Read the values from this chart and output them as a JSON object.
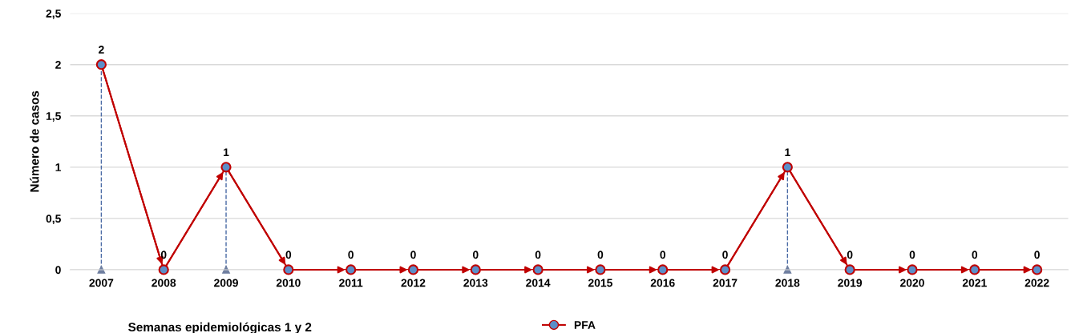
{
  "chart_data": {
    "type": "line",
    "xlabel": "Semanas epidemiológicas 1 y 2",
    "ylabel": "Número de casos",
    "categories": [
      "2007",
      "2008",
      "2009",
      "2010",
      "2011",
      "2012",
      "2013",
      "2014",
      "2015",
      "2016",
      "2017",
      "2018",
      "2019",
      "2020",
      "2021",
      "2022"
    ],
    "series": [
      {
        "name": "PFA",
        "color": "#c00000",
        "values": [
          2,
          0,
          1,
          0,
          0,
          0,
          0,
          0,
          0,
          0,
          0,
          1,
          0,
          0,
          0,
          0
        ],
        "errors": [
          [
            0,
            2
          ],
          null,
          [
            0,
            1
          ],
          null,
          null,
          null,
          null,
          null,
          null,
          null,
          null,
          [
            0,
            1
          ],
          null,
          null,
          null,
          null
        ]
      }
    ],
    "ylim": [
      0,
      2.5
    ],
    "yticks": [
      0,
      {
        "value": 0.5,
        "label": "0,5"
      },
      1,
      {
        "value": 1.5,
        "label": "1,5"
      },
      2,
      {
        "value": 2.5,
        "label": "2,5"
      }
    ],
    "grid": "y",
    "legend": "bottom",
    "marker": "circle",
    "line_style": "solid",
    "data_labels": true
  }
}
